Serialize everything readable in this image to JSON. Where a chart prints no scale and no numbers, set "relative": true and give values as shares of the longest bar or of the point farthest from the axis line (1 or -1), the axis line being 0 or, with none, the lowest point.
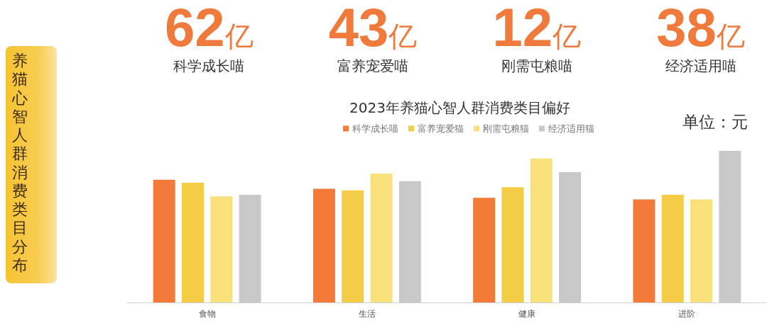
{
  "chart_data": [
    {
      "type": "other",
      "title": "养猫心智人群消费类目分布",
      "annotations": [
        "62亿",
        "科学成长喵",
        "43亿",
        "富养宠爱喵",
        "12亿",
        "刚需屯粮喵",
        "38亿",
        "经济适用喵"
      ]
    },
    {
      "type": "bar",
      "title": "2023年养猫心智人群消费类目偏好",
      "annotations": [
        "单位：元"
      ],
      "categories": [
        "食物",
        "生活",
        "健康",
        "进阶"
      ],
      "relative": true,
      "legend": "top",
      "series": [
        {
          "name": "科学成长喵",
          "color": "#f47a3a",
          "values": [
            0.81,
            0.75,
            0.69,
            0.68
          ]
        },
        {
          "name": "富养宠爱猫",
          "color": "#f4cc45",
          "values": [
            0.79,
            0.74,
            0.76,
            0.71
          ]
        },
        {
          "name": "刚需屯粮猫",
          "color": "#f8e07a",
          "values": [
            0.7,
            0.85,
            0.95,
            0.68
          ]
        },
        {
          "name": "经济适用猫",
          "color": "#c8c8c8",
          "values": [
            0.71,
            0.8,
            0.86,
            1
          ]
        }
      ]
    }
  ]
}
